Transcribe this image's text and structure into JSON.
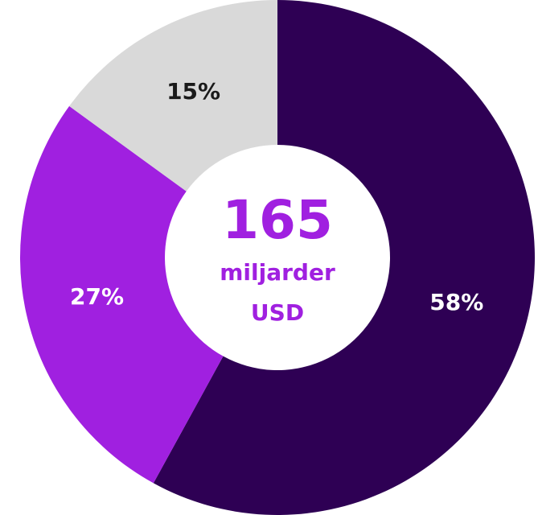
{
  "chart_data": {
    "type": "donut",
    "categories": [
      null,
      null,
      null
    ],
    "values": [
      58,
      27,
      15
    ],
    "value_labels": [
      "58%",
      "27%",
      "15%"
    ],
    "colors": [
      "#2e0054",
      "#a020e0",
      "#d9d9d9"
    ],
    "label_colors": [
      "#ffffff",
      "#ffffff",
      "#1a1a1a"
    ],
    "center_label": [
      "165",
      "miljarder",
      "USD"
    ]
  }
}
